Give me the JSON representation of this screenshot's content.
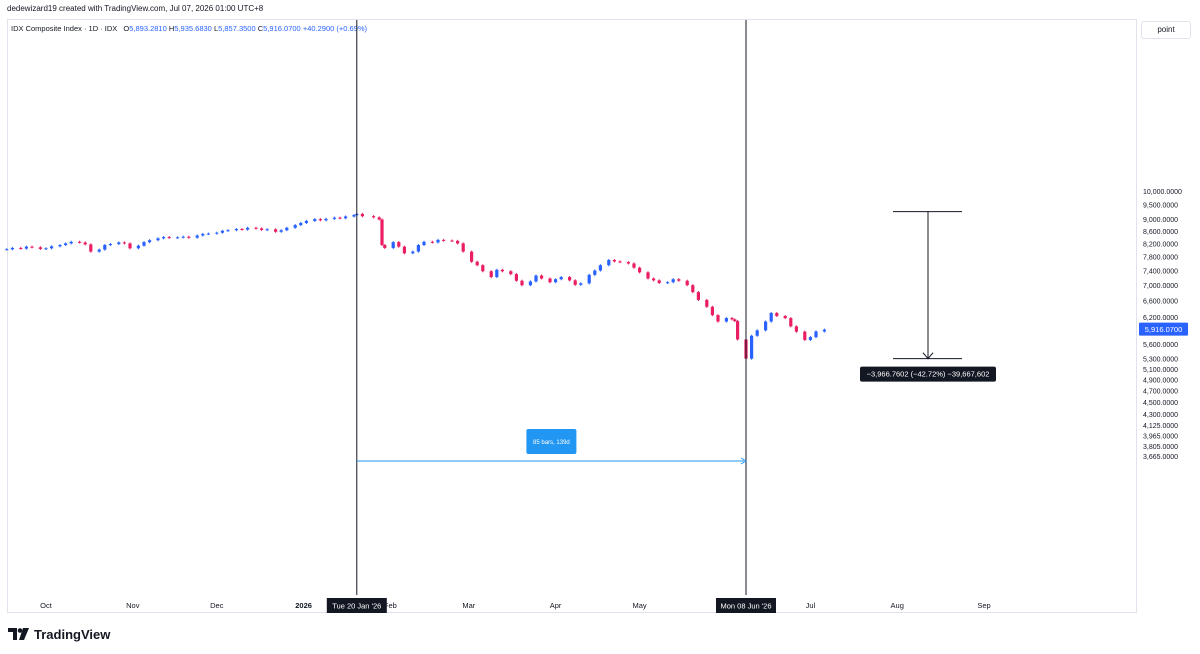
{
  "header": {
    "attribution": "dedewizard19 created with TradingView.com, Jul 07, 2026 01:00 UTC+8"
  },
  "legend": {
    "symbol": "IDX Composite Index · 1D · IDX",
    "open_label": "O",
    "open": "5,893.2810",
    "high_label": "H",
    "high": "5,935.6830",
    "low_label": "L",
    "low": "5,857.3500",
    "close_label": "C",
    "close": "5,916.0700",
    "change": "+40.2900 (+0.69%)"
  },
  "toolbar": {
    "scale_button": "point"
  },
  "footer": {
    "brand": "TradingView"
  },
  "colors": {
    "up": "#2962ff",
    "down": "#e91e63",
    "grid_border": "#e0e3eb",
    "range_fill": "#2196f3",
    "marker_bg": "#131722"
  },
  "chart_data": {
    "type": "candlestick",
    "price_scale": "log",
    "y_tick_labels": [
      "10,000.0000",
      "9,500.0000",
      "9,000.0000",
      "8,600.0000",
      "8,200.0000",
      "7,800.0000",
      "7,400.0000",
      "7,000.0000",
      "6,600.0000",
      "6,200.0000",
      "5,600.0000",
      "5,300.0000",
      "5,100.0000",
      "4,900.0000",
      "4,700.0000",
      "4,500.0000",
      "4,300.0000",
      "4,125.0000",
      "3,965.0000",
      "3,805.0000",
      "3,665.0000"
    ],
    "y_ticks": [
      10000,
      9500,
      9000,
      8600,
      8200,
      7800,
      7400,
      7000,
      6600,
      6200,
      5600,
      5300,
      5100,
      4900,
      4700,
      4500,
      4300,
      4125,
      3965,
      3805,
      3665
    ],
    "x_tick_labels": [
      "Oct",
      "Nov",
      "Dec",
      "2026",
      "Feb",
      "Mar",
      "Apr",
      "May",
      "Jul",
      "Aug",
      "Sep"
    ],
    "x_tick_dates": [
      "2025-10-01",
      "2025-11-01",
      "2025-12-01",
      "2026-01-01",
      "2026-02-01",
      "2026-03-01",
      "2026-04-01",
      "2026-05-01",
      "2026-07-01",
      "2026-08-01",
      "2026-09-01"
    ],
    "last_price_label": "5,916.0700",
    "last_price": 5916.07,
    "vertical_markers": [
      {
        "date": "2026-01-20",
        "label": "Tue 20 Jan '26"
      },
      {
        "date": "2026-06-08",
        "label": "Mon 08 Jun '26"
      }
    ],
    "date_range_label": "85 bars, 139d",
    "price_range": {
      "from": 9250,
      "to": 5300,
      "label": "−3,966.7602 (−42.72%) −39,667,602"
    },
    "series": [
      {
        "date": "2025-09-17",
        "c": 8020
      },
      {
        "date": "2025-09-19",
        "c": 8060
      },
      {
        "date": "2025-09-22",
        "c": 8040
      },
      {
        "date": "2025-09-24",
        "c": 8100
      },
      {
        "date": "2025-09-26",
        "c": 8080
      },
      {
        "date": "2025-09-29",
        "c": 8030
      },
      {
        "date": "2025-10-01",
        "c": 8050
      },
      {
        "date": "2025-10-03",
        "c": 8110
      },
      {
        "date": "2025-10-06",
        "c": 8150
      },
      {
        "date": "2025-10-08",
        "c": 8200
      },
      {
        "date": "2025-10-10",
        "c": 8250
      },
      {
        "date": "2025-10-13",
        "c": 8230
      },
      {
        "date": "2025-10-15",
        "c": 8170
      },
      {
        "date": "2025-10-17",
        "c": 7950
      },
      {
        "date": "2025-10-20",
        "c": 8010
      },
      {
        "date": "2025-10-22",
        "c": 8150
      },
      {
        "date": "2025-10-24",
        "c": 8180
      },
      {
        "date": "2025-10-27",
        "c": 8230
      },
      {
        "date": "2025-10-29",
        "c": 8200
      },
      {
        "date": "2025-10-31",
        "c": 8050
      },
      {
        "date": "2025-11-03",
        "c": 8130
      },
      {
        "date": "2025-11-05",
        "c": 8240
      },
      {
        "date": "2025-11-07",
        "c": 8300
      },
      {
        "date": "2025-11-10",
        "c": 8360
      },
      {
        "date": "2025-11-12",
        "c": 8400
      },
      {
        "date": "2025-11-14",
        "c": 8380
      },
      {
        "date": "2025-11-17",
        "c": 8390
      },
      {
        "date": "2025-11-19",
        "c": 8410
      },
      {
        "date": "2025-11-21",
        "c": 8380
      },
      {
        "date": "2025-11-24",
        "c": 8450
      },
      {
        "date": "2025-11-26",
        "c": 8500
      },
      {
        "date": "2025-11-28",
        "c": 8510
      },
      {
        "date": "2025-12-01",
        "c": 8540
      },
      {
        "date": "2025-12-03",
        "c": 8600
      },
      {
        "date": "2025-12-05",
        "c": 8620
      },
      {
        "date": "2025-12-08",
        "c": 8660
      },
      {
        "date": "2025-12-10",
        "c": 8640
      },
      {
        "date": "2025-12-12",
        "c": 8700
      },
      {
        "date": "2025-12-15",
        "c": 8680
      },
      {
        "date": "2025-12-17",
        "c": 8630
      },
      {
        "date": "2025-12-19",
        "c": 8650
      },
      {
        "date": "2025-12-22",
        "c": 8570
      },
      {
        "date": "2025-12-24",
        "c": 8620
      },
      {
        "date": "2025-12-26",
        "c": 8700
      },
      {
        "date": "2025-12-29",
        "c": 8790
      },
      {
        "date": "2025-12-31",
        "c": 8860
      },
      {
        "date": "2026-01-02",
        "c": 8930
      },
      {
        "date": "2026-01-05",
        "c": 8990
      },
      {
        "date": "2026-01-07",
        "c": 8950
      },
      {
        "date": "2026-01-09",
        "c": 9000
      },
      {
        "date": "2026-01-12",
        "c": 9040
      },
      {
        "date": "2026-01-14",
        "c": 9020
      },
      {
        "date": "2026-01-16",
        "c": 9080
      },
      {
        "date": "2026-01-19",
        "c": 9130
      },
      {
        "date": "2026-01-20",
        "c": 9170
      },
      {
        "date": "2026-01-22",
        "c": 9090
      },
      {
        "date": "2026-01-26",
        "c": 9050
      },
      {
        "date": "2026-01-28",
        "c": 8980
      },
      {
        "date": "2026-01-29",
        "c": 8150
      },
      {
        "date": "2026-01-30",
        "c": 8060
      },
      {
        "date": "2026-02-02",
        "c": 8240
      },
      {
        "date": "2026-02-04",
        "c": 8100
      },
      {
        "date": "2026-02-06",
        "c": 7900
      },
      {
        "date": "2026-02-09",
        "c": 7950
      },
      {
        "date": "2026-02-11",
        "c": 8150
      },
      {
        "date": "2026-02-13",
        "c": 8250
      },
      {
        "date": "2026-02-16",
        "c": 8230
      },
      {
        "date": "2026-02-18",
        "c": 8310
      },
      {
        "date": "2026-02-20",
        "c": 8290
      },
      {
        "date": "2026-02-23",
        "c": 8280
      },
      {
        "date": "2026-02-25",
        "c": 8200
      },
      {
        "date": "2026-02-27",
        "c": 7950
      },
      {
        "date": "2026-03-02",
        "c": 7650
      },
      {
        "date": "2026-03-04",
        "c": 7550
      },
      {
        "date": "2026-03-06",
        "c": 7380
      },
      {
        "date": "2026-03-09",
        "c": 7220
      },
      {
        "date": "2026-03-11",
        "c": 7420
      },
      {
        "date": "2026-03-13",
        "c": 7380
      },
      {
        "date": "2026-03-16",
        "c": 7300
      },
      {
        "date": "2026-03-18",
        "c": 7120
      },
      {
        "date": "2026-03-20",
        "c": 7000
      },
      {
        "date": "2026-03-23",
        "c": 7100
      },
      {
        "date": "2026-03-25",
        "c": 7260
      },
      {
        "date": "2026-03-27",
        "c": 7180
      },
      {
        "date": "2026-03-30",
        "c": 7080
      },
      {
        "date": "2026-04-01",
        "c": 7160
      },
      {
        "date": "2026-04-03",
        "c": 7220
      },
      {
        "date": "2026-04-06",
        "c": 7130
      },
      {
        "date": "2026-04-08",
        "c": 7010
      },
      {
        "date": "2026-04-10",
        "c": 7050
      },
      {
        "date": "2026-04-13",
        "c": 7280
      },
      {
        "date": "2026-04-15",
        "c": 7400
      },
      {
        "date": "2026-04-17",
        "c": 7550
      },
      {
        "date": "2026-04-20",
        "c": 7700
      },
      {
        "date": "2026-04-22",
        "c": 7660
      },
      {
        "date": "2026-04-24",
        "c": 7640
      },
      {
        "date": "2026-04-27",
        "c": 7600
      },
      {
        "date": "2026-04-29",
        "c": 7480
      },
      {
        "date": "2026-05-01",
        "c": 7350
      },
      {
        "date": "2026-05-04",
        "c": 7180
      },
      {
        "date": "2026-05-06",
        "c": 7130
      },
      {
        "date": "2026-05-08",
        "c": 7060
      },
      {
        "date": "2026-05-11",
        "c": 7080
      },
      {
        "date": "2026-05-13",
        "c": 7160
      },
      {
        "date": "2026-05-15",
        "c": 7120
      },
      {
        "date": "2026-05-18",
        "c": 7000
      },
      {
        "date": "2026-05-20",
        "c": 6820
      },
      {
        "date": "2026-05-22",
        "c": 6620
      },
      {
        "date": "2026-05-25",
        "c": 6450
      },
      {
        "date": "2026-05-27",
        "c": 6250
      },
      {
        "date": "2026-05-29",
        "c": 6100
      },
      {
        "date": "2026-06-01",
        "c": 6180
      },
      {
        "date": "2026-06-03",
        "c": 6150
      },
      {
        "date": "2026-06-04",
        "c": 6110
      },
      {
        "date": "2026-06-05",
        "c": 5700
      },
      {
        "date": "2026-06-08",
        "c": 5300
      },
      {
        "date": "2026-06-10",
        "c": 5780
      },
      {
        "date": "2026-06-12",
        "c": 5900
      },
      {
        "date": "2026-06-15",
        "c": 6100
      },
      {
        "date": "2026-06-17",
        "c": 6300
      },
      {
        "date": "2026-06-19",
        "c": 6230
      },
      {
        "date": "2026-06-22",
        "c": 6180
      },
      {
        "date": "2026-06-24",
        "c": 5990
      },
      {
        "date": "2026-06-26",
        "c": 5870
      },
      {
        "date": "2026-06-29",
        "c": 5690
      },
      {
        "date": "2026-07-01",
        "c": 5750
      },
      {
        "date": "2026-07-03",
        "c": 5875
      },
      {
        "date": "2026-07-06",
        "c": 5916
      }
    ]
  }
}
